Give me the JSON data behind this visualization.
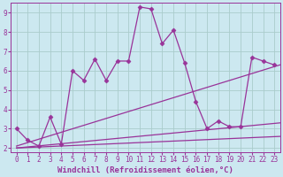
{
  "background_color": "#cce8f0",
  "grid_color": "#aacccc",
  "line_color": "#993399",
  "xlabel": "Windchill (Refroidissement éolien,°C)",
  "xlim": [
    -0.5,
    23.5
  ],
  "ylim": [
    1.8,
    9.5
  ],
  "yticks": [
    2,
    3,
    4,
    5,
    6,
    7,
    8,
    9
  ],
  "xticks": [
    0,
    1,
    2,
    3,
    4,
    5,
    6,
    7,
    8,
    9,
    10,
    11,
    12,
    13,
    14,
    15,
    16,
    17,
    18,
    19,
    20,
    21,
    22,
    23
  ],
  "series1_x": [
    0,
    1,
    2,
    3,
    4,
    5,
    6,
    7,
    8,
    9,
    10,
    11,
    12,
    13,
    14,
    15,
    16,
    17,
    18,
    19,
    20,
    21,
    22,
    23
  ],
  "series1_y": [
    3.0,
    2.4,
    2.1,
    3.6,
    2.2,
    6.0,
    5.5,
    6.6,
    5.5,
    6.5,
    6.5,
    9.3,
    9.2,
    7.4,
    8.1,
    6.4,
    4.4,
    3.0,
    3.4,
    3.1,
    3.1,
    6.7,
    6.5,
    6.3
  ],
  "line2_x": [
    0,
    23.5
  ],
  "line2_y": [
    2.1,
    6.3
  ],
  "line3_x": [
    0,
    23.5
  ],
  "line3_y": [
    2.0,
    3.3
  ],
  "line4_x": [
    0,
    23.5
  ],
  "line4_y": [
    2.0,
    2.6
  ],
  "marker": "D",
  "markersize": 2.5,
  "linewidth": 0.9,
  "font_color": "#993399",
  "tick_fontsize": 5.5,
  "label_fontsize": 6.5
}
